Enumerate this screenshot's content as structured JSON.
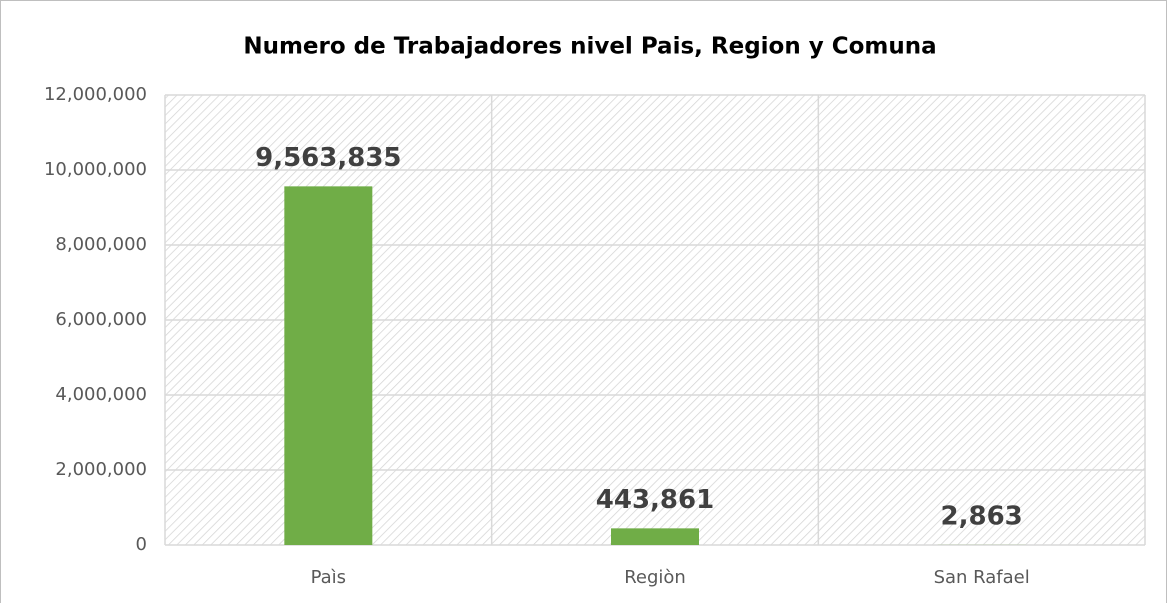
{
  "chart_data": {
    "type": "bar",
    "title": "Numero de Trabajadores nivel Pais, Region y Comuna",
    "categories": [
      "Paìs",
      "Regiòn",
      "San Rafael"
    ],
    "values": [
      9563835,
      443861,
      2863
    ],
    "value_labels": [
      "9,563,835",
      "443,861",
      "2,863"
    ],
    "color": "#70ad47",
    "ylim": [
      0,
      12000000
    ],
    "yticks": [
      0,
      {
        "value": 2000000,
        "label": "2,000,000"
      },
      {
        "value": 4000000,
        "label": "4,000,000"
      },
      {
        "value": 6000000,
        "label": "6,000,000"
      },
      {
        "value": 8000000,
        "label": "8,000,000"
      },
      {
        "value": 10000000,
        "label": "10,000,000"
      },
      {
        "value": 12000000,
        "label": "12,000,000"
      }
    ],
    "grid": true
  }
}
